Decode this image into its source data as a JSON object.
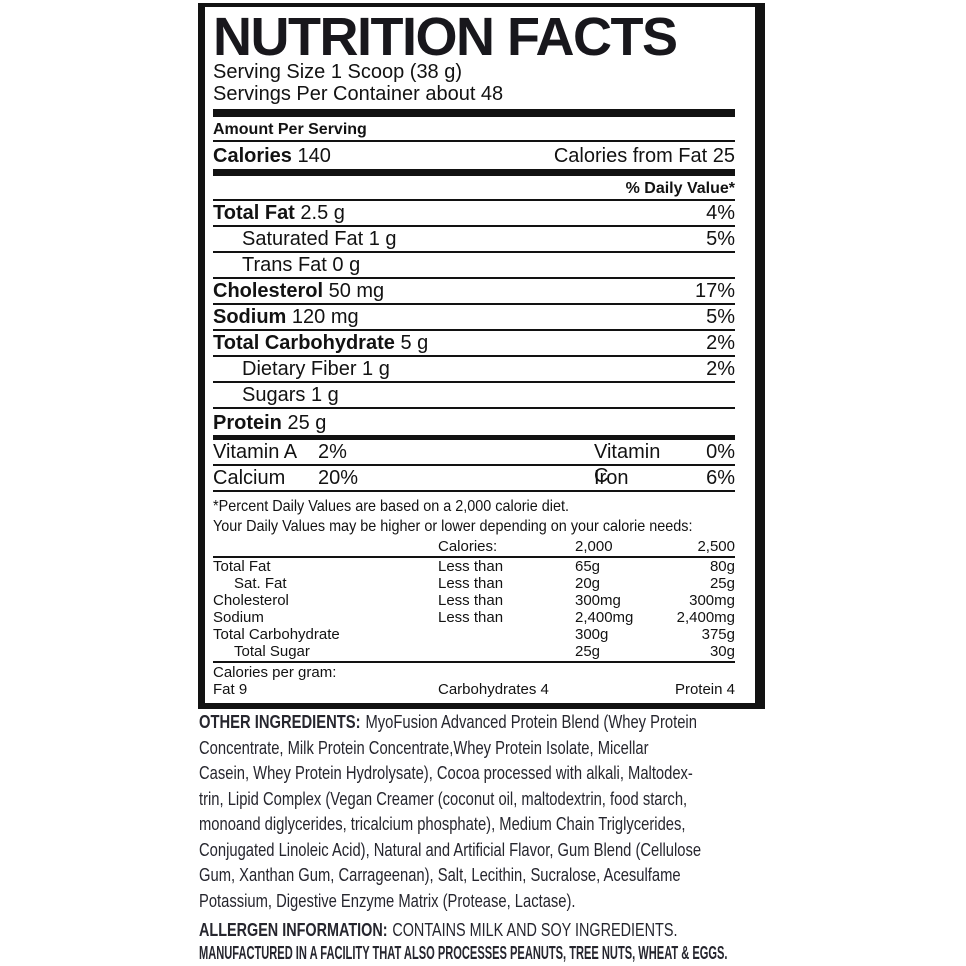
{
  "label": {
    "title": "NUTRITION FACTS",
    "serving_size": "Serving Size 1 Scoop (38 g)",
    "servings_per_container": "Servings Per Container about 48",
    "amount_per_serving": "Amount Per Serving",
    "calories_label": "Calories",
    "calories_value": "140",
    "calories_from_fat": "Calories from Fat 25",
    "daily_value_header": "% Daily Value*",
    "nutrients": [
      {
        "name": "Total Fat",
        "amount": "2.5 g",
        "dv": "4%"
      },
      {
        "name": "Saturated Fat",
        "amount": "1 g",
        "dv": "5%"
      },
      {
        "name": "Trans Fat",
        "amount": "0 g",
        "dv": ""
      },
      {
        "name": "Cholesterol",
        "amount": "50 mg",
        "dv": "17%"
      },
      {
        "name": "Sodium",
        "amount": "120 mg",
        "dv": "5%"
      },
      {
        "name": "Total Carbohydrate",
        "amount": "5 g",
        "dv": "2%"
      },
      {
        "name": "Dietary Fiber",
        "amount": "1 g",
        "dv": "2%"
      },
      {
        "name": "Sugars",
        "amount": "1 g",
        "dv": ""
      },
      {
        "name": "Protein",
        "amount": "25 g",
        "dv": ""
      }
    ],
    "vitamins": [
      {
        "left_name": "Vitamin A",
        "left_value": "2%",
        "right_name": "Vitamin C",
        "right_value": "0%"
      },
      {
        "left_name": "Calcium",
        "left_value": "20%",
        "right_name": "Iron",
        "right_value": "6%"
      }
    ],
    "footnote_line1": "*Percent Daily Values are based on a 2,000 calorie diet.",
    "footnote_line2": "Your Daily Values may be higher or lower depending on your calorie needs:",
    "dv_table": {
      "header": {
        "c2": "Calories:",
        "c3": "2,000",
        "c4": "2,500"
      },
      "rows": [
        {
          "c1": "Total Fat",
          "c2": "Less than",
          "c3": "65g",
          "c4": "80g",
          "indent": false
        },
        {
          "c1": "Sat. Fat",
          "c2": "Less than",
          "c3": "20g",
          "c4": "25g",
          "indent": true
        },
        {
          "c1": "Cholesterol",
          "c2": "Less than",
          "c3": "300mg",
          "c4": "300mg",
          "indent": false
        },
        {
          "c1": "Sodium",
          "c2": "Less than",
          "c3": "2,400mg",
          "c4": "2,400mg",
          "indent": false
        },
        {
          "c1": "Total Carbohydrate",
          "c2": "",
          "c3": "300g",
          "c4": "375g",
          "indent": false
        },
        {
          "c1": "Total Sugar",
          "c2": "",
          "c3": "25g",
          "c4": "30g",
          "indent": true
        }
      ]
    },
    "calories_per_gram": {
      "label": "Calories per gram:",
      "fat": "Fat 9",
      "carbohydrates": "Carbohydrates 4",
      "protein": "Protein 4"
    }
  },
  "other_ingredients": {
    "label": "OTHER INGREDIENTS:",
    "line1_rest": "MyoFusion Advanced Protein Blend (Whey Protein",
    "lines": [
      "Concentrate, Milk Protein Concentrate,Whey Protein Isolate, Micellar",
      "Casein, Whey Protein Hydrolysate), Cocoa processed with alkali, Maltodex-",
      "trin, Lipid Complex (Vegan Creamer (coconut oil, maltodextrin, food starch,",
      "monoand diglycerides, tricalcium phosphate), Medium Chain Triglycerides,",
      "Conjugated Linoleic Acid), Natural and Artificial Flavor, Gum Blend (Cellulose",
      "Gum, Xanthan Gum, Carrageenan), Salt, Lecithin, Sucralose, Acesulfame",
      "Potassium, Digestive Enzyme Matrix (Protease, Lactase)."
    ]
  },
  "allergen": {
    "label": "ALLERGEN INFORMATION:",
    "text": "CONTAINS MILK AND SOY INGREDIENTS.",
    "line2": "MANUFACTURED IN A FACILITY THAT ALSO PROCESSES PEANUTS, TREE NUTS, WHEAT & EGGS."
  },
  "colors": {
    "label_ink": "#121212",
    "body_ink": "#26262e",
    "background": "#ffffff"
  }
}
